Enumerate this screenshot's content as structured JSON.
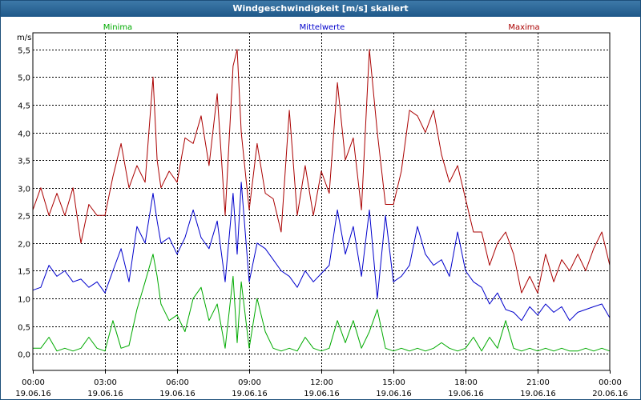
{
  "window": {
    "title": "Windgeschwindigkeit [m/s] skaliert"
  },
  "colors": {
    "min": "#00aa00",
    "mean": "#0000cc",
    "max": "#aa0000",
    "grid": "#000000"
  },
  "chart_data": {
    "type": "line",
    "title": "Windgeschwindigkeit [m/s] skaliert",
    "ylabel": "m/s",
    "ylim": [
      -0.3,
      5.8
    ],
    "yticks": [
      0.0,
      0.5,
      1.0,
      1.5,
      2.0,
      2.5,
      3.0,
      3.5,
      4.0,
      4.5,
      5.0,
      5.5
    ],
    "ytick_labels": [
      "0,0",
      "0,5",
      "1,0",
      "1,5",
      "2,0",
      "2,5",
      "3,0",
      "3,5",
      "4,0",
      "4,5",
      "5,0",
      "5,5"
    ],
    "xlim": [
      0,
      24
    ],
    "xticks": [
      {
        "time": "00:00",
        "date": "19.06.16"
      },
      {
        "time": "03:00",
        "date": "19.06.16"
      },
      {
        "time": "06:00",
        "date": "19.06.16"
      },
      {
        "time": "09:00",
        "date": "19.06.16"
      },
      {
        "time": "12:00",
        "date": "19.06.16"
      },
      {
        "time": "15:00",
        "date": "19.06.16"
      },
      {
        "time": "18:00",
        "date": "19.06.16"
      },
      {
        "time": "21:00",
        "date": "19.06.16"
      },
      {
        "time": "00:00",
        "date": "20.06.16"
      }
    ],
    "grid": true,
    "series": [
      {
        "name": "Minima",
        "color": "#00aa00",
        "x": [
          0,
          0.33,
          0.67,
          1,
          1.33,
          1.67,
          2,
          2.33,
          2.67,
          3,
          3.33,
          3.67,
          4,
          4.33,
          4.67,
          5,
          5.17,
          5.33,
          5.67,
          6,
          6.33,
          6.67,
          7,
          7.33,
          7.67,
          8,
          8.33,
          8.5,
          8.67,
          9,
          9.33,
          9.67,
          10,
          10.33,
          10.67,
          11,
          11.33,
          11.67,
          12,
          12.33,
          12.67,
          13,
          13.33,
          13.67,
          14,
          14.33,
          14.67,
          15,
          15.33,
          15.67,
          16,
          16.33,
          16.67,
          17,
          17.33,
          17.67,
          18,
          18.33,
          18.67,
          19,
          19.33,
          19.67,
          20,
          20.33,
          20.67,
          21,
          21.33,
          21.67,
          22,
          22.33,
          22.67,
          23,
          23.33,
          23.67,
          24
        ],
        "values": [
          0.1,
          0.1,
          0.3,
          0.05,
          0.1,
          0.05,
          0.1,
          0.3,
          0.1,
          0.05,
          0.6,
          0.1,
          0.15,
          0.8,
          1.3,
          1.8,
          1.4,
          0.9,
          0.6,
          0.7,
          0.4,
          1.0,
          1.2,
          0.6,
          0.9,
          0.1,
          1.4,
          0.2,
          1.3,
          0.1,
          1.0,
          0.4,
          0.1,
          0.05,
          0.1,
          0.05,
          0.3,
          0.1,
          0.05,
          0.1,
          0.6,
          0.2,
          0.6,
          0.1,
          0.4,
          0.8,
          0.1,
          0.05,
          0.1,
          0.05,
          0.1,
          0.05,
          0.1,
          0.2,
          0.1,
          0.05,
          0.1,
          0.3,
          0.05,
          0.3,
          0.1,
          0.6,
          0.1,
          0.05,
          0.1,
          0.05,
          0.1,
          0.05,
          0.1,
          0.05,
          0.05,
          0.1,
          0.05,
          0.1,
          0.05
        ]
      },
      {
        "name": "Mittelwerte",
        "color": "#0000cc",
        "x": [
          0,
          0.33,
          0.67,
          1,
          1.33,
          1.67,
          2,
          2.33,
          2.67,
          3,
          3.33,
          3.67,
          4,
          4.33,
          4.67,
          5,
          5.17,
          5.33,
          5.67,
          6,
          6.33,
          6.67,
          7,
          7.33,
          7.67,
          8,
          8.33,
          8.5,
          8.67,
          9,
          9.33,
          9.67,
          10,
          10.33,
          10.67,
          11,
          11.33,
          11.67,
          12,
          12.33,
          12.67,
          13,
          13.33,
          13.67,
          14,
          14.33,
          14.67,
          15,
          15.33,
          15.67,
          16,
          16.33,
          16.67,
          17,
          17.33,
          17.67,
          18,
          18.33,
          18.67,
          19,
          19.33,
          19.67,
          20,
          20.33,
          20.67,
          21,
          21.33,
          21.67,
          22,
          22.33,
          22.67,
          23,
          23.33,
          23.67,
          24
        ],
        "values": [
          1.15,
          1.2,
          1.6,
          1.4,
          1.5,
          1.3,
          1.35,
          1.2,
          1.3,
          1.1,
          1.5,
          1.9,
          1.3,
          2.3,
          2.0,
          2.9,
          2.4,
          2.0,
          2.1,
          1.8,
          2.1,
          2.6,
          2.1,
          1.9,
          2.4,
          1.3,
          2.9,
          1.8,
          3.1,
          1.3,
          2.0,
          1.9,
          1.7,
          1.5,
          1.4,
          1.2,
          1.5,
          1.3,
          1.45,
          1.6,
          2.6,
          1.8,
          2.3,
          1.4,
          2.6,
          1.0,
          2.5,
          1.3,
          1.4,
          1.6,
          2.3,
          1.8,
          1.6,
          1.7,
          1.4,
          2.2,
          1.5,
          1.3,
          1.2,
          0.9,
          1.1,
          0.8,
          0.75,
          0.6,
          0.85,
          0.7,
          0.9,
          0.75,
          0.85,
          0.6,
          0.75,
          0.8,
          0.85,
          0.9,
          0.65
        ]
      },
      {
        "name": "Maxima",
        "color": "#aa0000",
        "x": [
          0,
          0.33,
          0.67,
          1,
          1.33,
          1.67,
          2,
          2.33,
          2.67,
          3,
          3.33,
          3.67,
          4,
          4.33,
          4.67,
          5,
          5.17,
          5.33,
          5.67,
          6,
          6.33,
          6.67,
          7,
          7.33,
          7.67,
          8,
          8.33,
          8.5,
          8.67,
          9,
          9.33,
          9.67,
          10,
          10.33,
          10.67,
          11,
          11.33,
          11.67,
          12,
          12.33,
          12.67,
          13,
          13.33,
          13.67,
          14,
          14.33,
          14.67,
          15,
          15.33,
          15.67,
          16,
          16.33,
          16.67,
          17,
          17.33,
          17.67,
          18,
          18.33,
          18.67,
          19,
          19.33,
          19.67,
          20,
          20.33,
          20.67,
          21,
          21.33,
          21.67,
          22,
          22.33,
          22.67,
          23,
          23.33,
          23.67,
          24
        ],
        "values": [
          2.6,
          3.0,
          2.5,
          2.9,
          2.5,
          3.0,
          2.0,
          2.7,
          2.5,
          2.5,
          3.2,
          3.8,
          3.0,
          3.4,
          3.1,
          5.0,
          3.5,
          3.0,
          3.3,
          3.1,
          3.9,
          3.8,
          4.3,
          3.4,
          4.7,
          2.5,
          5.2,
          5.5,
          4.0,
          2.6,
          3.8,
          2.9,
          2.8,
          2.2,
          4.4,
          2.5,
          3.4,
          2.5,
          3.3,
          2.9,
          4.9,
          3.5,
          3.9,
          2.6,
          5.5,
          4.0,
          2.7,
          2.7,
          3.3,
          4.4,
          4.3,
          4.0,
          4.4,
          3.6,
          3.1,
          3.4,
          2.8,
          2.2,
          2.2,
          1.6,
          2.0,
          2.2,
          1.8,
          1.1,
          1.4,
          1.1,
          1.8,
          1.3,
          1.7,
          1.5,
          1.8,
          1.5,
          1.9,
          2.2,
          1.6
        ]
      }
    ]
  }
}
